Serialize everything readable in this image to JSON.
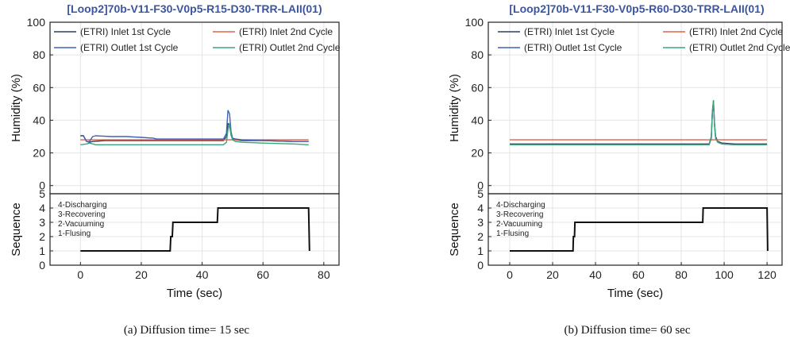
{
  "chart_data": [
    {
      "type": "line",
      "title": "[Loop2]70b-V11-F30-V0p5-R15-D30-TRR-LAII(01)",
      "caption": "(a)  Diffusion time= 15  sec",
      "xlabel": "Time (sec)",
      "xlim": [
        -10,
        85
      ],
      "xticks": [
        "0",
        "20",
        "40",
        "60",
        "80"
      ],
      "xtick_values": [
        0,
        20,
        40,
        60,
        80
      ],
      "grid": true,
      "top": {
        "ylabel": "Humidity (%)",
        "ylim": [
          -5,
          100
        ],
        "yticks": [
          "0",
          "20",
          "40",
          "60",
          "80",
          "100"
        ],
        "ytick_values": [
          0,
          20,
          40,
          60,
          80,
          100
        ],
        "legend_position": "top",
        "series": [
          {
            "name": "(ETRI) Inlet 1st Cycle",
            "color": "#2f3f5e",
            "x": [
              0,
              1,
              2,
              3,
              4,
              8,
              15,
              20,
              25,
              30,
              40,
              47,
              48,
              48.5,
              49,
              49.5,
              50,
              51,
              53,
              60,
              70,
              75
            ],
            "y": [
              30.5,
              30.5,
              27,
              26.5,
              27,
              27.5,
              27.5,
              27.5,
              27.5,
              27.5,
              27.5,
              27.5,
              30,
              38,
              37,
              31,
              28.5,
              28,
              27.5,
              27.5,
              27,
              27
            ]
          },
          {
            "name": "(ETRI) Inlet 2nd Cycle",
            "color": "#e0604a",
            "x": [
              0,
              75
            ],
            "y": [
              28,
              28
            ]
          },
          {
            "name": "(ETRI) Outlet 1st Cycle",
            "color": "#3f62b8",
            "x": [
              0,
              1,
              2,
              3,
              4,
              5,
              10,
              15,
              20,
              24,
              25,
              30,
              35,
              40,
              45,
              47,
              48,
              48.5,
              49,
              49.5,
              50,
              51,
              53,
              60,
              70,
              75
            ],
            "y": [
              30.5,
              30.5,
              27,
              27,
              30,
              30.5,
              30,
              30,
              29.5,
              29,
              28.5,
              28.5,
              28.5,
              28.5,
              28.5,
              28.5,
              32,
              46,
              44,
              33,
              29,
              28.5,
              28,
              27.5,
              27,
              27
            ]
          },
          {
            "name": "(ETRI) Outlet 2nd Cycle",
            "color": "#3aa67a",
            "x": [
              0,
              2,
              3,
              5,
              10,
              20,
              30,
              40,
              46,
              47,
              48,
              48.5,
              49,
              49.5,
              50,
              51,
              53,
              60,
              70,
              75
            ],
            "y": [
              25,
              25.5,
              26,
              25,
              25,
              25,
              25,
              25,
              25,
              25,
              26.5,
              34,
              38,
              31,
              28,
              27,
              26.5,
              26,
              25.5,
              25
            ]
          }
        ]
      },
      "bottom": {
        "ylabel": "Sequence",
        "ylim": [
          0,
          5
        ],
        "yticks": [
          "0",
          "1",
          "2",
          "3",
          "4",
          "5"
        ],
        "ytick_values": [
          0,
          1,
          2,
          3,
          4,
          5
        ],
        "stage_labels": [
          "4-Discharging",
          "3-Recovering",
          "2-Vacuuming",
          "1-Flusing"
        ],
        "series": [
          {
            "name": "Sequence",
            "color": "#111111",
            "x": [
              0,
              29.5,
              29.7,
              30.2,
              30.4,
              45,
              45.2,
              75,
              75.3
            ],
            "y": [
              1,
              1,
              2,
              2,
              3,
              3,
              4,
              4,
              1
            ]
          }
        ]
      }
    },
    {
      "type": "line",
      "title": "[Loop2]70b-V11-F30-V0p5-R60-D30-TRR-LAII(01)",
      "caption": "(b)  Diffusion time= 60  sec",
      "xlabel": "Time (sec)",
      "xlim": [
        -10,
        127
      ],
      "xticks": [
        "0",
        "20",
        "40",
        "60",
        "80",
        "100",
        "120"
      ],
      "xtick_values": [
        0,
        20,
        40,
        60,
        80,
        100,
        120
      ],
      "grid": true,
      "top": {
        "ylabel": "Humidity (%)",
        "ylim": [
          -5,
          100
        ],
        "yticks": [
          "0",
          "20",
          "40",
          "60",
          "80",
          "100"
        ],
        "ytick_values": [
          0,
          20,
          40,
          60,
          80,
          100
        ],
        "legend_position": "top",
        "series": [
          {
            "name": "(ETRI) Inlet 1st Cycle",
            "color": "#2f3f5e",
            "x": [
              0,
              20,
              40,
              60,
              80,
              93,
              94,
              94.5,
              95,
              95.5,
              96,
              97,
              99,
              105,
              120
            ],
            "y": [
              25.5,
              25.5,
              25.5,
              25.5,
              25.5,
              25.5,
              30,
              45,
              52,
              38,
              30,
              27,
              26,
              25.5,
              25.5
            ]
          },
          {
            "name": "(ETRI) Inlet 2nd Cycle",
            "color": "#e0604a",
            "x": [
              0,
              120
            ],
            "y": [
              28,
              28
            ]
          },
          {
            "name": "(ETRI) Outlet 1st Cycle",
            "color": "#3f62b8",
            "x": [
              0,
              20,
              40,
              60,
              80,
              93,
              94,
              94.5,
              95,
              95.5,
              96,
              97,
              99,
              105,
              120
            ],
            "y": [
              25,
              25,
              25,
              25,
              25,
              25,
              29,
              44,
              51,
              37,
              29,
              26.5,
              25.5,
              25,
              25
            ]
          },
          {
            "name": "(ETRI) Outlet 2nd Cycle",
            "color": "#3aa67a",
            "x": [
              0,
              20,
              40,
              60,
              80,
              93,
              94,
              94.5,
              95,
              95.5,
              96,
              97,
              99,
              105,
              120
            ],
            "y": [
              25,
              25,
              25,
              25,
              25,
              25,
              30,
              45,
              52,
              38,
              29,
              26.5,
              25.5,
              25,
              25
            ]
          }
        ]
      },
      "bottom": {
        "ylabel": "Sequence",
        "ylim": [
          0,
          5
        ],
        "yticks": [
          "0",
          "1",
          "2",
          "3",
          "4",
          "5"
        ],
        "ytick_values": [
          0,
          1,
          2,
          3,
          4,
          5
        ],
        "stage_labels": [
          "4-Discharging",
          "3-Recovering",
          "2-Vacuuming",
          "1-Flusing"
        ],
        "series": [
          {
            "name": "Sequence",
            "color": "#111111",
            "x": [
              0,
              29.5,
              29.7,
              30.2,
              30.4,
              90,
              90.2,
              120,
              120.3
            ],
            "y": [
              1,
              1,
              2,
              2,
              3,
              3,
              4,
              4,
              1
            ]
          }
        ]
      }
    }
  ]
}
